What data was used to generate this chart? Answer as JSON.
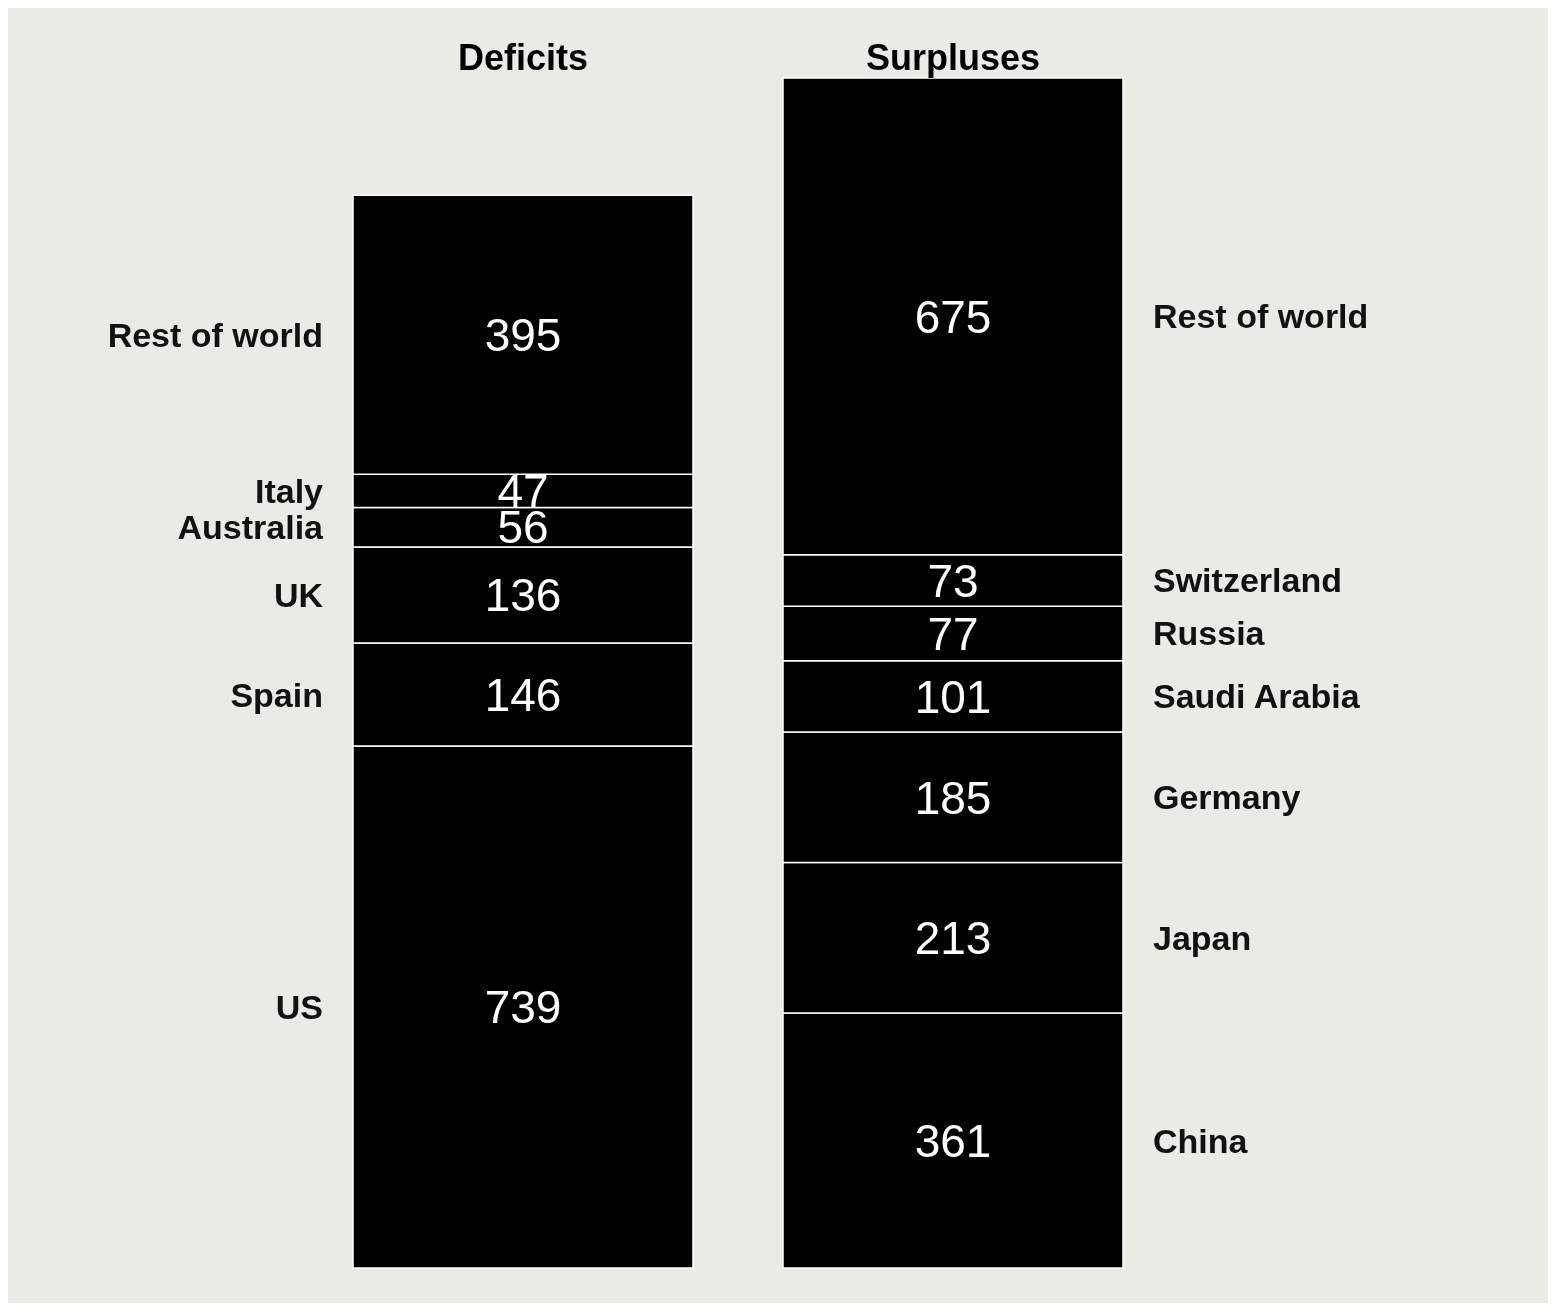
{
  "chart_data": {
    "type": "bar",
    "stacked": true,
    "categories": [
      "Deficits",
      "Surpluses"
    ],
    "data_labels": true,
    "legend": false,
    "series": [
      {
        "name": "US",
        "color": "#000000",
        "values": [
          739,
          null
        ]
      },
      {
        "name": "Spain",
        "color": "#000000",
        "values": [
          146,
          null
        ]
      },
      {
        "name": "UK",
        "color": "#000000",
        "values": [
          136,
          null
        ]
      },
      {
        "name": "Australia",
        "color": "#000000",
        "values": [
          56,
          null
        ]
      },
      {
        "name": "Italy",
        "color": "#000000",
        "values": [
          47,
          null
        ]
      },
      {
        "name": "Rest of world",
        "color": "#000000",
        "values": [
          395,
          null
        ]
      },
      {
        "name": "China",
        "color": "#000000",
        "values": [
          null,
          361
        ]
      },
      {
        "name": "Japan",
        "color": "#000000",
        "values": [
          null,
          213
        ]
      },
      {
        "name": "Germany",
        "color": "#000000",
        "values": [
          null,
          185
        ]
      },
      {
        "name": "Saudi Arabia",
        "color": "#000000",
        "values": [
          null,
          101
        ]
      },
      {
        "name": "Russia",
        "color": "#000000",
        "values": [
          null,
          77
        ]
      },
      {
        "name": "Switzerland",
        "color": "#000000",
        "values": [
          null,
          73
        ]
      },
      {
        "name": "Rest of world",
        "color": "#000000",
        "values": [
          null,
          675
        ]
      }
    ]
  }
}
